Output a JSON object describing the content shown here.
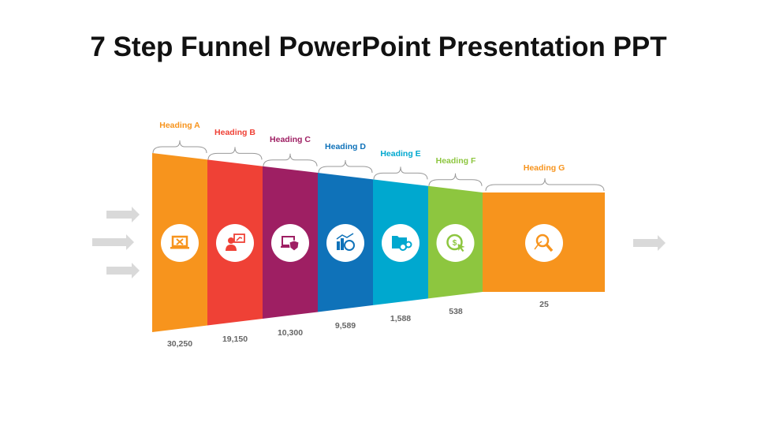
{
  "title": "7 Step Funnel PowerPoint Presentation PPT",
  "steps": [
    {
      "heading": "Heading A",
      "value": "30,250",
      "color": "#f7941d",
      "icon": "laptop-tools-icon"
    },
    {
      "heading": "Heading B",
      "value": "19,150",
      "color": "#ef4136",
      "icon": "presenter-chart-icon"
    },
    {
      "heading": "Heading C",
      "value": "10,300",
      "color": "#9e1f63",
      "icon": "laptop-shield-icon"
    },
    {
      "heading": "Heading D",
      "value": "9,589",
      "color": "#0f72b9",
      "icon": "bar-chart-coin-icon"
    },
    {
      "heading": "Heading E",
      "value": "1,588",
      "color": "#00a8cf",
      "icon": "folder-gears-icon"
    },
    {
      "heading": "Heading F",
      "value": "538",
      "color": "#8dc63f",
      "icon": "dollar-click-icon"
    },
    {
      "heading": "Heading G",
      "value": "25",
      "color": "#f7941d",
      "icon": "magnifier-growth-icon"
    }
  ],
  "arrow_color": "#d9d9d9",
  "brace_color": "#999999"
}
